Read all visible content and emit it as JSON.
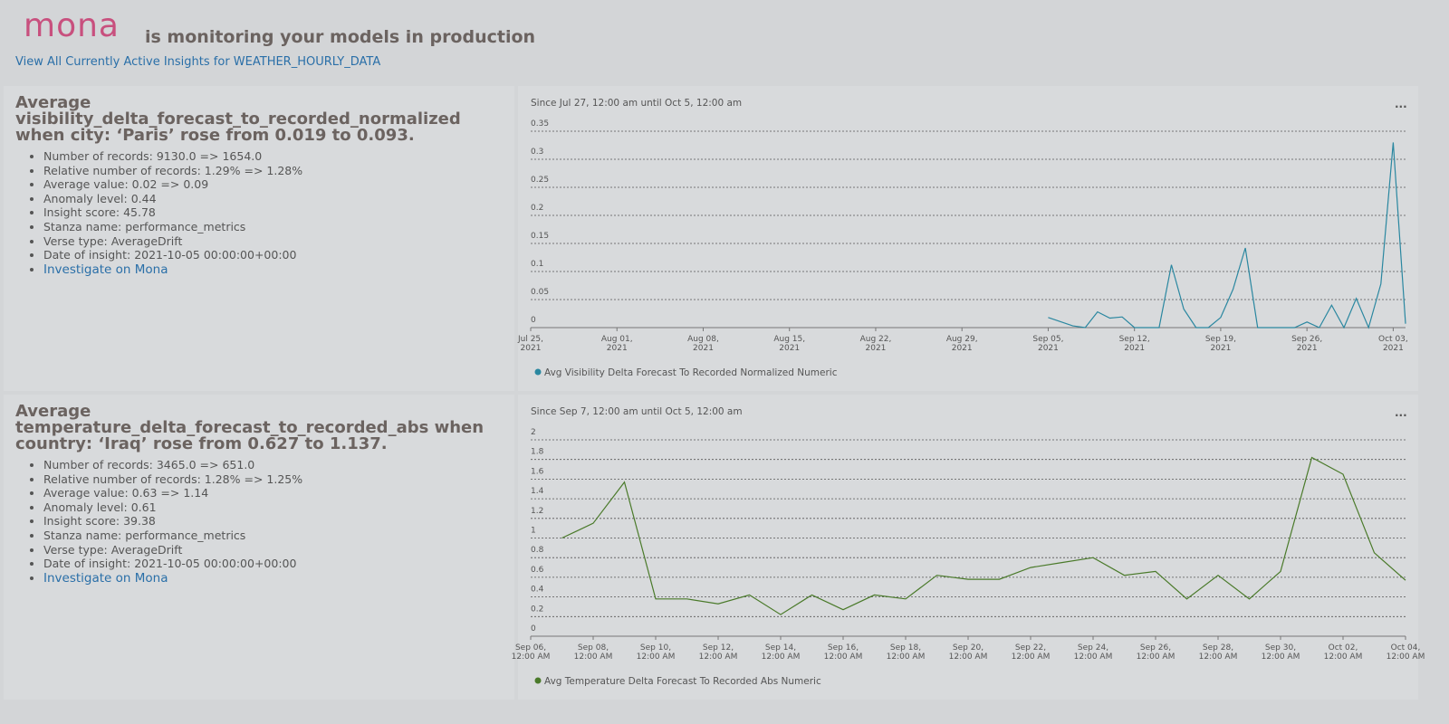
{
  "header": {
    "logo": "mona",
    "tagline": "is monitoring your models in production",
    "link": "View All Currently Active Insights for WEATHER_HOURLY_DATA"
  },
  "insights": [
    {
      "headline": "Average visibility_delta_forecast_to_recorded_normalized when city: ‘Paris’ rose from 0.019 to 0.093.",
      "details": [
        "Number of records: 9130.0 => 1654.0",
        "Relative number of records: 1.29% => 1.28%",
        "Average value: 0.02 => 0.09",
        "Anomaly level: 0.44",
        "Insight score: 45.78",
        "Stanza name: performance_metrics",
        "Verse type: AverageDrift",
        "Date of insight: 2021-10-05 00:00:00+00:00"
      ],
      "link": "Investigate on Mona",
      "menu": "...",
      "chart": {
        "type": "line",
        "subtitle": "Since Jul 27, 12:00 am until Oct 5, 12:00 am",
        "series": [
          {
            "name": "Avg Visibility Delta Forecast To Recorded Normalized Numeric",
            "color": "#2a87a0",
            "x": [
              "2021-09-05",
              "2021-09-07",
              "2021-09-08",
              "2021-09-09",
              "2021-09-10",
              "2021-09-11",
              "2021-09-12",
              "2021-09-13",
              "2021-09-14",
              "2021-09-15",
              "2021-09-16",
              "2021-09-17",
              "2021-09-18",
              "2021-09-19",
              "2021-09-20",
              "2021-09-21",
              "2021-09-22",
              "2021-09-23",
              "2021-09-24",
              "2021-09-25",
              "2021-09-26",
              "2021-09-27",
              "2021-09-28",
              "2021-09-29",
              "2021-09-30",
              "2021-10-01",
              "2021-10-02",
              "2021-10-03",
              "2021-10-04"
            ],
            "values": [
              0.018,
              0.003,
              0,
              0.028,
              0.017,
              0.019,
              0,
              0,
              0,
              0.112,
              0.033,
              0,
              0,
              0.018,
              0.068,
              0.142,
              0,
              0,
              0,
              0,
              0.01,
              0,
              0.04,
              0,
              0.052,
              0,
              0.078,
              0.33,
              0.007
            ]
          }
        ],
        "xlim": [
          "2021-07-25",
          "2021-10-04"
        ],
        "xticks": [
          {
            "value": "2021-07-25",
            "label": [
              "Jul 25,",
              "2021"
            ]
          },
          {
            "value": "2021-08-01",
            "label": [
              "Aug 01,",
              "2021"
            ]
          },
          {
            "value": "2021-08-08",
            "label": [
              "Aug 08,",
              "2021"
            ]
          },
          {
            "value": "2021-08-15",
            "label": [
              "Aug 15,",
              "2021"
            ]
          },
          {
            "value": "2021-08-22",
            "label": [
              "Aug 22,",
              "2021"
            ]
          },
          {
            "value": "2021-08-29",
            "label": [
              "Aug 29,",
              "2021"
            ]
          },
          {
            "value": "2021-09-05",
            "label": [
              "Sep 05,",
              "2021"
            ]
          },
          {
            "value": "2021-09-12",
            "label": [
              "Sep 12,",
              "2021"
            ]
          },
          {
            "value": "2021-09-19",
            "label": [
              "Sep 19,",
              "2021"
            ]
          },
          {
            "value": "2021-09-26",
            "label": [
              "Sep 26,",
              "2021"
            ]
          },
          {
            "value": "2021-10-03",
            "label": [
              "Oct 03,",
              "2021"
            ]
          }
        ],
        "ylim": [
          0,
          0.35
        ],
        "yticks": [
          0,
          0.05,
          0.1,
          0.15,
          0.2,
          0.25,
          0.3,
          0.35
        ],
        "grid": true
      }
    },
    {
      "headline": "Average temperature_delta_forecast_to_recorded_abs when country: ‘Iraq’ rose from 0.627 to 1.137.",
      "details": [
        "Number of records: 3465.0 => 651.0",
        "Relative number of records: 1.28% => 1.25%",
        "Average value: 0.63 => 1.14",
        "Anomaly level: 0.61",
        "Insight score: 39.38",
        "Stanza name: performance_metrics",
        "Verse type: AverageDrift",
        "Date of insight: 2021-10-05 00:00:00+00:00"
      ],
      "link": "Investigate on Mona",
      "menu": "...",
      "chart": {
        "type": "line",
        "subtitle": "Since Sep 7, 12:00 am until Oct 5, 12:00 am",
        "series": [
          {
            "name": "Avg Temperature Delta Forecast To Recorded Abs Numeric",
            "color": "#4a7a2a",
            "x": [
              "2021-09-07",
              "2021-09-08",
              "2021-09-09",
              "2021-09-10",
              "2021-09-11",
              "2021-09-12",
              "2021-09-13",
              "2021-09-14",
              "2021-09-15",
              "2021-09-16",
              "2021-09-17",
              "2021-09-18",
              "2021-09-19",
              "2021-09-20",
              "2021-09-21",
              "2021-09-22",
              "2021-09-23",
              "2021-09-24",
              "2021-09-25",
              "2021-09-26",
              "2021-09-27",
              "2021-09-28",
              "2021-09-29",
              "2021-09-30",
              "2021-10-01",
              "2021-10-02",
              "2021-10-03",
              "2021-10-04"
            ],
            "values": [
              1.0,
              1.15,
              1.57,
              0.38,
              0.38,
              0.33,
              0.42,
              0.22,
              0.42,
              0.27,
              0.42,
              0.38,
              0.62,
              0.58,
              0.58,
              0.7,
              0.75,
              0.8,
              0.62,
              0.66,
              0.38,
              0.62,
              0.38,
              0.66,
              1.82,
              1.65,
              0.85,
              0.57
            ]
          }
        ],
        "xlim": [
          "2021-09-06",
          "2021-10-04"
        ],
        "xticks": [
          {
            "value": "2021-09-06",
            "label": [
              "Sep 06,",
              "12:00 AM"
            ]
          },
          {
            "value": "2021-09-08",
            "label": [
              "Sep 08,",
              "12:00 AM"
            ]
          },
          {
            "value": "2021-09-10",
            "label": [
              "Sep 10,",
              "12:00 AM"
            ]
          },
          {
            "value": "2021-09-12",
            "label": [
              "Sep 12,",
              "12:00 AM"
            ]
          },
          {
            "value": "2021-09-14",
            "label": [
              "Sep 14,",
              "12:00 AM"
            ]
          },
          {
            "value": "2021-09-16",
            "label": [
              "Sep 16,",
              "12:00 AM"
            ]
          },
          {
            "value": "2021-09-18",
            "label": [
              "Sep 18,",
              "12:00 AM"
            ]
          },
          {
            "value": "2021-09-20",
            "label": [
              "Sep 20,",
              "12:00 AM"
            ]
          },
          {
            "value": "2021-09-22",
            "label": [
              "Sep 22,",
              "12:00 AM"
            ]
          },
          {
            "value": "2021-09-24",
            "label": [
              "Sep 24,",
              "12:00 AM"
            ]
          },
          {
            "value": "2021-09-26",
            "label": [
              "Sep 26,",
              "12:00 AM"
            ]
          },
          {
            "value": "2021-09-28",
            "label": [
              "Sep 28,",
              "12:00 AM"
            ]
          },
          {
            "value": "2021-09-30",
            "label": [
              "Sep 30,",
              "12:00 AM"
            ]
          },
          {
            "value": "2021-10-02",
            "label": [
              "Oct 02,",
              "12:00 AM"
            ]
          },
          {
            "value": "2021-10-04",
            "label": [
              "Oct 04,",
              "12:00 AM"
            ]
          }
        ],
        "ylim": [
          0,
          2
        ],
        "yticks": [
          0,
          0.2,
          0.4,
          0.6,
          0.8,
          1,
          1.2,
          1.4,
          1.6,
          1.8,
          2
        ],
        "grid": true
      }
    }
  ]
}
